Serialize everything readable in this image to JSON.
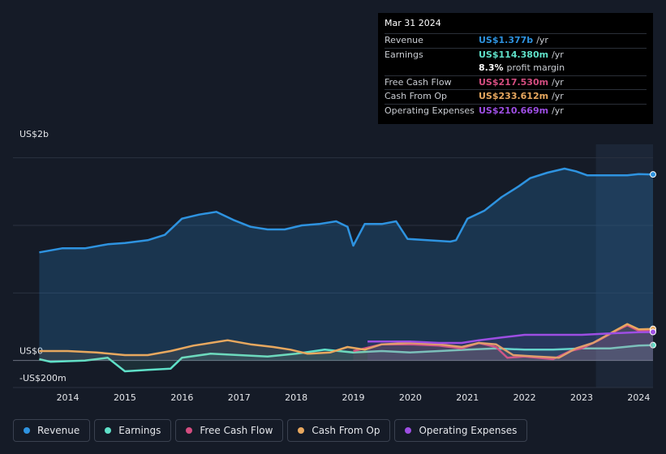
{
  "chart_data": {
    "type": "line",
    "y_top_label": "US$2b",
    "xlim": [
      2013.04,
      2024.25
    ],
    "ylim": [
      -0.2,
      1.6
    ],
    "xticks": [
      2014,
      2015,
      2016,
      2017,
      2018,
      2019,
      2020,
      2021,
      2022,
      2023,
      2024
    ],
    "yticks": [
      {
        "value": -0.2,
        "label": "-US$200m"
      },
      {
        "value": 0,
        "label": "US$0"
      }
    ],
    "gridlines": [
      0.5,
      1,
      1.5
    ],
    "highlight_from": 2023.25,
    "series": [
      {
        "name": "Revenue",
        "color": "#2e93e0",
        "fill": true,
        "x": [
          2013.5,
          2013.9,
          2014.3,
          2014.7,
          2015.0,
          2015.4,
          2015.7,
          2016.0,
          2016.3,
          2016.6,
          2016.9,
          2017.2,
          2017.5,
          2017.8,
          2018.1,
          2018.4,
          2018.7,
          2018.9,
          2019.0,
          2019.2,
          2019.5,
          2019.75,
          2019.95,
          2020.3,
          2020.7,
          2020.8,
          2021.0,
          2021.3,
          2021.6,
          2021.9,
          2022.1,
          2022.4,
          2022.7,
          2022.9,
          2023.1,
          2023.5,
          2023.8,
          2024.0,
          2024.25
        ],
        "values": [
          0.8,
          0.83,
          0.83,
          0.86,
          0.87,
          0.89,
          0.93,
          1.05,
          1.08,
          1.1,
          1.04,
          0.99,
          0.97,
          0.97,
          1.0,
          1.01,
          1.03,
          0.99,
          0.85,
          1.01,
          1.01,
          1.03,
          0.9,
          0.89,
          0.88,
          0.89,
          1.05,
          1.11,
          1.21,
          1.29,
          1.35,
          1.39,
          1.42,
          1.4,
          1.37,
          1.37,
          1.37,
          1.38,
          1.377
        ]
      },
      {
        "name": "Earnings",
        "color": "#5fe0c8",
        "fill": false,
        "x": [
          2013.5,
          2013.7,
          2014.3,
          2014.7,
          2015.0,
          2015.4,
          2015.8,
          2016.0,
          2016.5,
          2017.0,
          2017.5,
          2018.0,
          2018.5,
          2019.0,
          2019.5,
          2020.0,
          2020.5,
          2021.0,
          2021.5,
          2022.0,
          2022.5,
          2023.0,
          2023.5,
          2024.0,
          2024.25
        ],
        "values": [
          0.01,
          -0.01,
          0.0,
          0.02,
          -0.08,
          -0.07,
          -0.06,
          0.02,
          0.05,
          0.04,
          0.03,
          0.05,
          0.08,
          0.06,
          0.07,
          0.06,
          0.07,
          0.08,
          0.09,
          0.08,
          0.08,
          0.09,
          0.09,
          0.11,
          0.114
        ]
      },
      {
        "name": "Free Cash Flow",
        "color": "#d44d80",
        "fill": false,
        "x": [
          2019.0,
          2019.5,
          2020.0,
          2020.5,
          2020.9,
          2021.2,
          2021.5,
          2021.7,
          2022.0,
          2022.5,
          2022.8,
          2023.0,
          2023.3,
          2023.6,
          2023.8,
          2024.0,
          2024.25
        ],
        "values": [
          0.07,
          0.12,
          0.12,
          0.11,
          0.09,
          0.13,
          0.1,
          0.02,
          0.03,
          0.01,
          0.07,
          0.09,
          0.15,
          0.22,
          0.26,
          0.22,
          0.2175
        ]
      },
      {
        "name": "Cash From Op",
        "color": "#e8a85f",
        "fill": false,
        "x": [
          2013.5,
          2014.0,
          2014.5,
          2015.0,
          2015.4,
          2015.8,
          2016.2,
          2016.5,
          2016.8,
          2017.2,
          2017.6,
          2017.9,
          2018.2,
          2018.6,
          2018.9,
          2019.2,
          2019.5,
          2020.0,
          2020.5,
          2020.9,
          2021.2,
          2021.5,
          2021.8,
          2022.2,
          2022.6,
          2022.9,
          2023.2,
          2023.5,
          2023.8,
          2024.0,
          2024.25
        ],
        "values": [
          0.07,
          0.07,
          0.06,
          0.04,
          0.04,
          0.07,
          0.11,
          0.13,
          0.15,
          0.12,
          0.1,
          0.08,
          0.05,
          0.06,
          0.1,
          0.08,
          0.12,
          0.13,
          0.12,
          0.1,
          0.13,
          0.12,
          0.04,
          0.03,
          0.02,
          0.09,
          0.13,
          0.2,
          0.27,
          0.23,
          0.234
        ]
      },
      {
        "name": "Operating Expenses",
        "color": "#9d4ee3",
        "fill": false,
        "x": [
          2019.25,
          2019.5,
          2020.0,
          2020.5,
          2020.9,
          2021.2,
          2021.6,
          2022.0,
          2022.5,
          2023.0,
          2023.5,
          2024.0,
          2024.25
        ],
        "values": [
          0.14,
          0.14,
          0.14,
          0.13,
          0.13,
          0.15,
          0.17,
          0.19,
          0.19,
          0.19,
          0.2,
          0.21,
          0.2107
        ]
      }
    ]
  },
  "tooltip": {
    "date": "Mar 31 2024",
    "rows": [
      {
        "label": "Revenue",
        "value": "US$1.377b",
        "unit": "/yr",
        "color": "#2e93e0"
      },
      {
        "label": "Earnings",
        "value": "US$114.380m",
        "unit": "/yr",
        "color": "#5fe0c8"
      },
      {
        "label": "",
        "value": "8.3%",
        "unit": "profit margin",
        "color": "#ffffff"
      },
      {
        "label": "Free Cash Flow",
        "value": "US$217.530m",
        "unit": "/yr",
        "color": "#d44d80"
      },
      {
        "label": "Cash From Op",
        "value": "US$233.612m",
        "unit": "/yr",
        "color": "#e8a85f"
      },
      {
        "label": "Operating Expenses",
        "value": "US$210.669m",
        "unit": "/yr",
        "color": "#9d4ee3"
      }
    ]
  }
}
